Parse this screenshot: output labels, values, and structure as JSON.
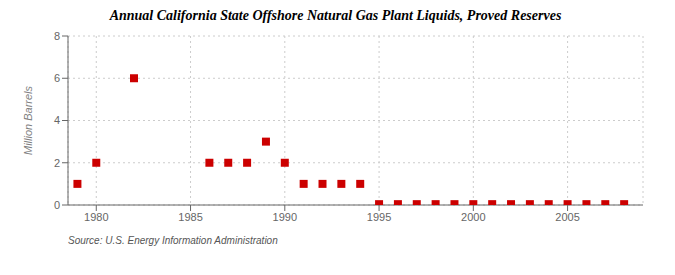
{
  "chart_data": {
    "type": "scatter",
    "title": "Annual California State Offshore Natural Gas Plant Liquids, Proved Reserves",
    "y_label": "Million Barrels",
    "annotations": [
      "Source: U.S. Energy Information Administration"
    ],
    "x": [
      1979,
      1980,
      1982,
      1986,
      1987,
      1988,
      1989,
      1990,
      1991,
      1992,
      1993,
      1994,
      1995,
      1996,
      1997,
      1998,
      1999,
      2000,
      2001,
      2002,
      2003,
      2004,
      2005,
      2006,
      2007,
      2008
    ],
    "values": [
      1.0,
      2.0,
      6.0,
      2.0,
      2.0,
      2.0,
      3.0,
      2.0,
      1.0,
      1.0,
      1.0,
      1.0,
      0.04,
      0.04,
      0.04,
      0.04,
      0.04,
      0.04,
      0.04,
      0.04,
      0.04,
      0.04,
      0.04,
      0.04,
      0.04,
      0.04
    ],
    "color": "#cc0000",
    "marker": "square",
    "xlim": [
      1978.5,
      2009
    ],
    "ylim": [
      0,
      8
    ],
    "xticks": [
      1980,
      1985,
      1990,
      1995,
      2000,
      2005
    ],
    "yticks": [
      0,
      2,
      4,
      6,
      8
    ],
    "grid": true
  }
}
